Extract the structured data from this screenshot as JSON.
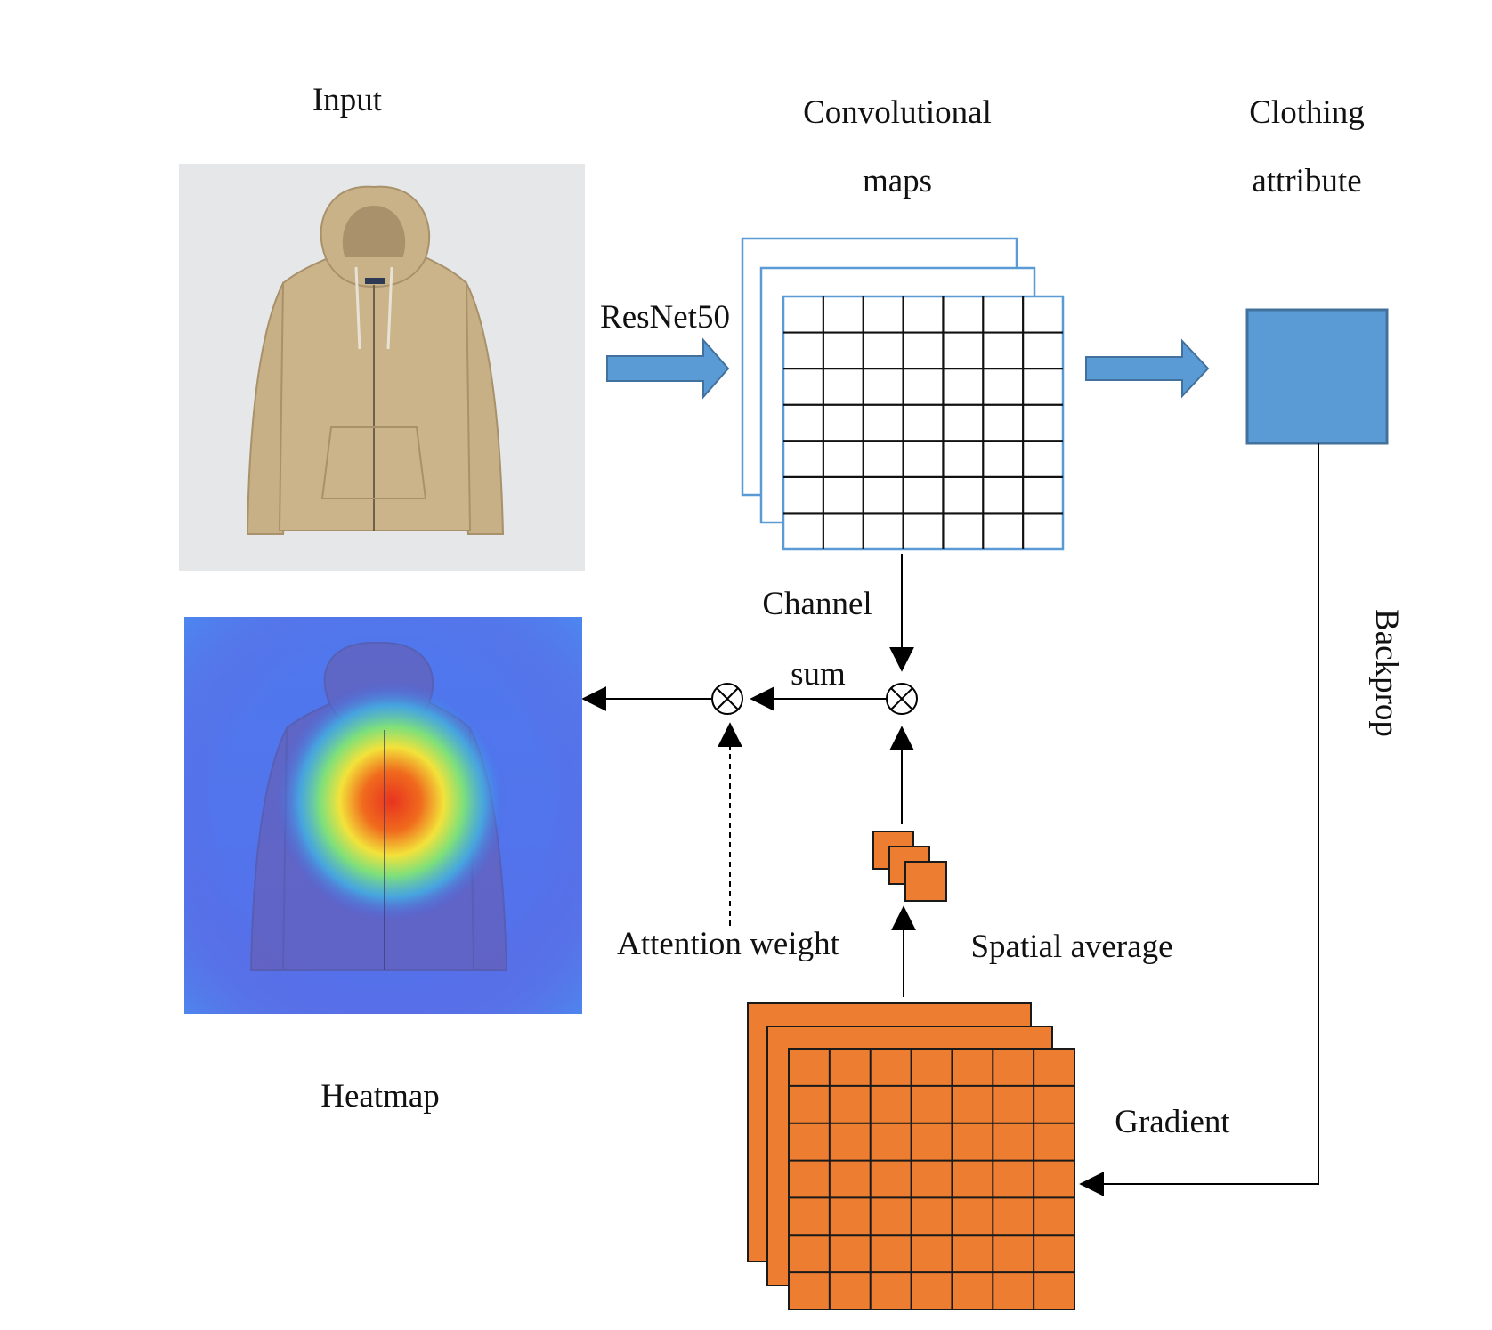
{
  "labels": {
    "input": "Input",
    "conv_line1": "Convolutional",
    "conv_line2": "maps",
    "clothing_line1": "Clothing",
    "clothing_line2": "attribute",
    "resnet": "ResNet50",
    "channel": "Channel",
    "sum": "sum",
    "backprop": "Backprop",
    "attention_weight": "Attention weight",
    "spatial_average": "Spatial average",
    "heatmap": "Heatmap",
    "gradient": "Gradient"
  },
  "colors": {
    "blue_fill": "#5b9bd5",
    "blue_stroke": "#41719c",
    "feature_map_stroke": "#5b9bd5",
    "orange_fill": "#ed7d31",
    "orange_stroke": "#1a1a1a",
    "jacket": "#cbb48a",
    "photo_background": "#e5e7e9"
  },
  "icons": {
    "multiply": "circled-times-icon",
    "hoodie": "hoodie-photo"
  }
}
